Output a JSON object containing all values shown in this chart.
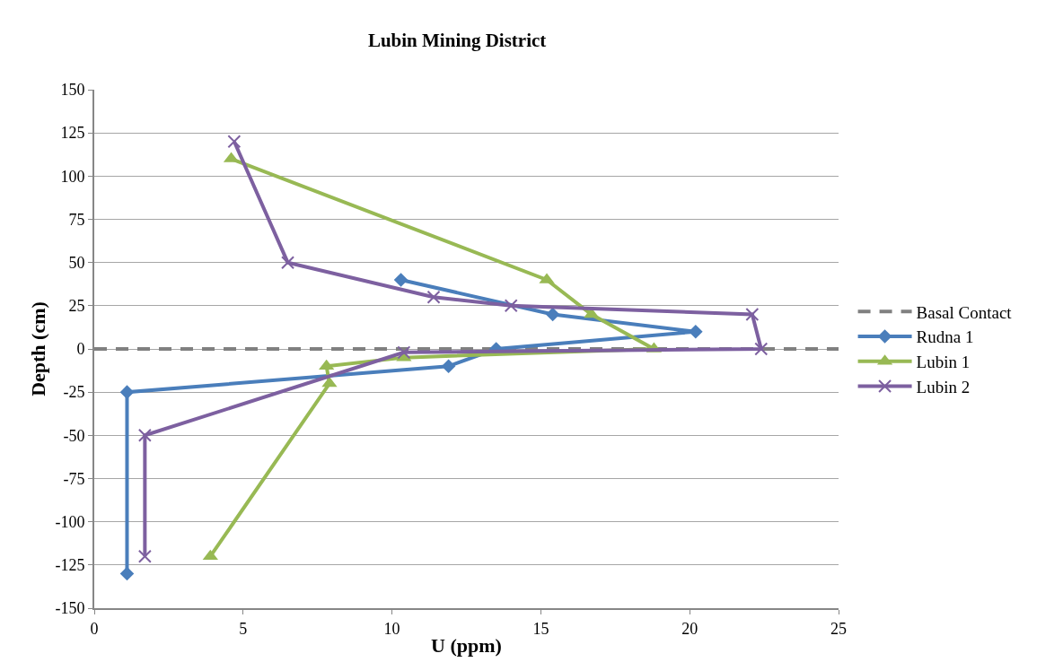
{
  "chart_data": {
    "type": "line",
    "title": "Lubin Mining District",
    "xlabel": "U (ppm)",
    "ylabel": "Depth (cm)",
    "xlim": [
      0,
      25
    ],
    "xticks": [
      0,
      5,
      10,
      15,
      20,
      25
    ],
    "ylim": [
      -150,
      150
    ],
    "yticks": [
      -150,
      -125,
      -100,
      -75,
      -50,
      -25,
      0,
      25,
      50,
      75,
      100,
      125,
      150
    ],
    "grid": "y",
    "legend": "right",
    "series": [
      {
        "name": "Basal Contact",
        "color": "#808080",
        "x": [
          0,
          25
        ],
        "values": [
          0,
          0
        ],
        "line_style": "dashed",
        "marker": "none"
      },
      {
        "name": "Rudna 1",
        "color": "#4a7ebb",
        "x": [
          10.3,
          15.4,
          20.2,
          13.5,
          11.9,
          1.1,
          1.1
        ],
        "values": [
          40,
          20,
          10,
          0,
          -10,
          -25,
          -130
        ],
        "marker": "diamond",
        "line_style": "solid"
      },
      {
        "name": "Lubin 1",
        "color": "#98b954",
        "x": [
          4.6,
          15.2,
          16.7,
          18.8,
          10.4,
          7.8,
          7.9,
          3.9
        ],
        "values": [
          110,
          40,
          20,
          0,
          -5,
          -10,
          -20,
          -120
        ],
        "marker": "triangle",
        "line_style": "solid"
      },
      {
        "name": "Lubin 2",
        "color": "#7d60a0",
        "x": [
          4.7,
          6.5,
          11.4,
          14,
          22.1,
          22.4,
          10.4,
          1.7,
          1.7
        ],
        "values": [
          120,
          50,
          30,
          25,
          20,
          0,
          -2,
          -50,
          -120
        ],
        "marker": "cross",
        "line_style": "solid"
      }
    ]
  }
}
